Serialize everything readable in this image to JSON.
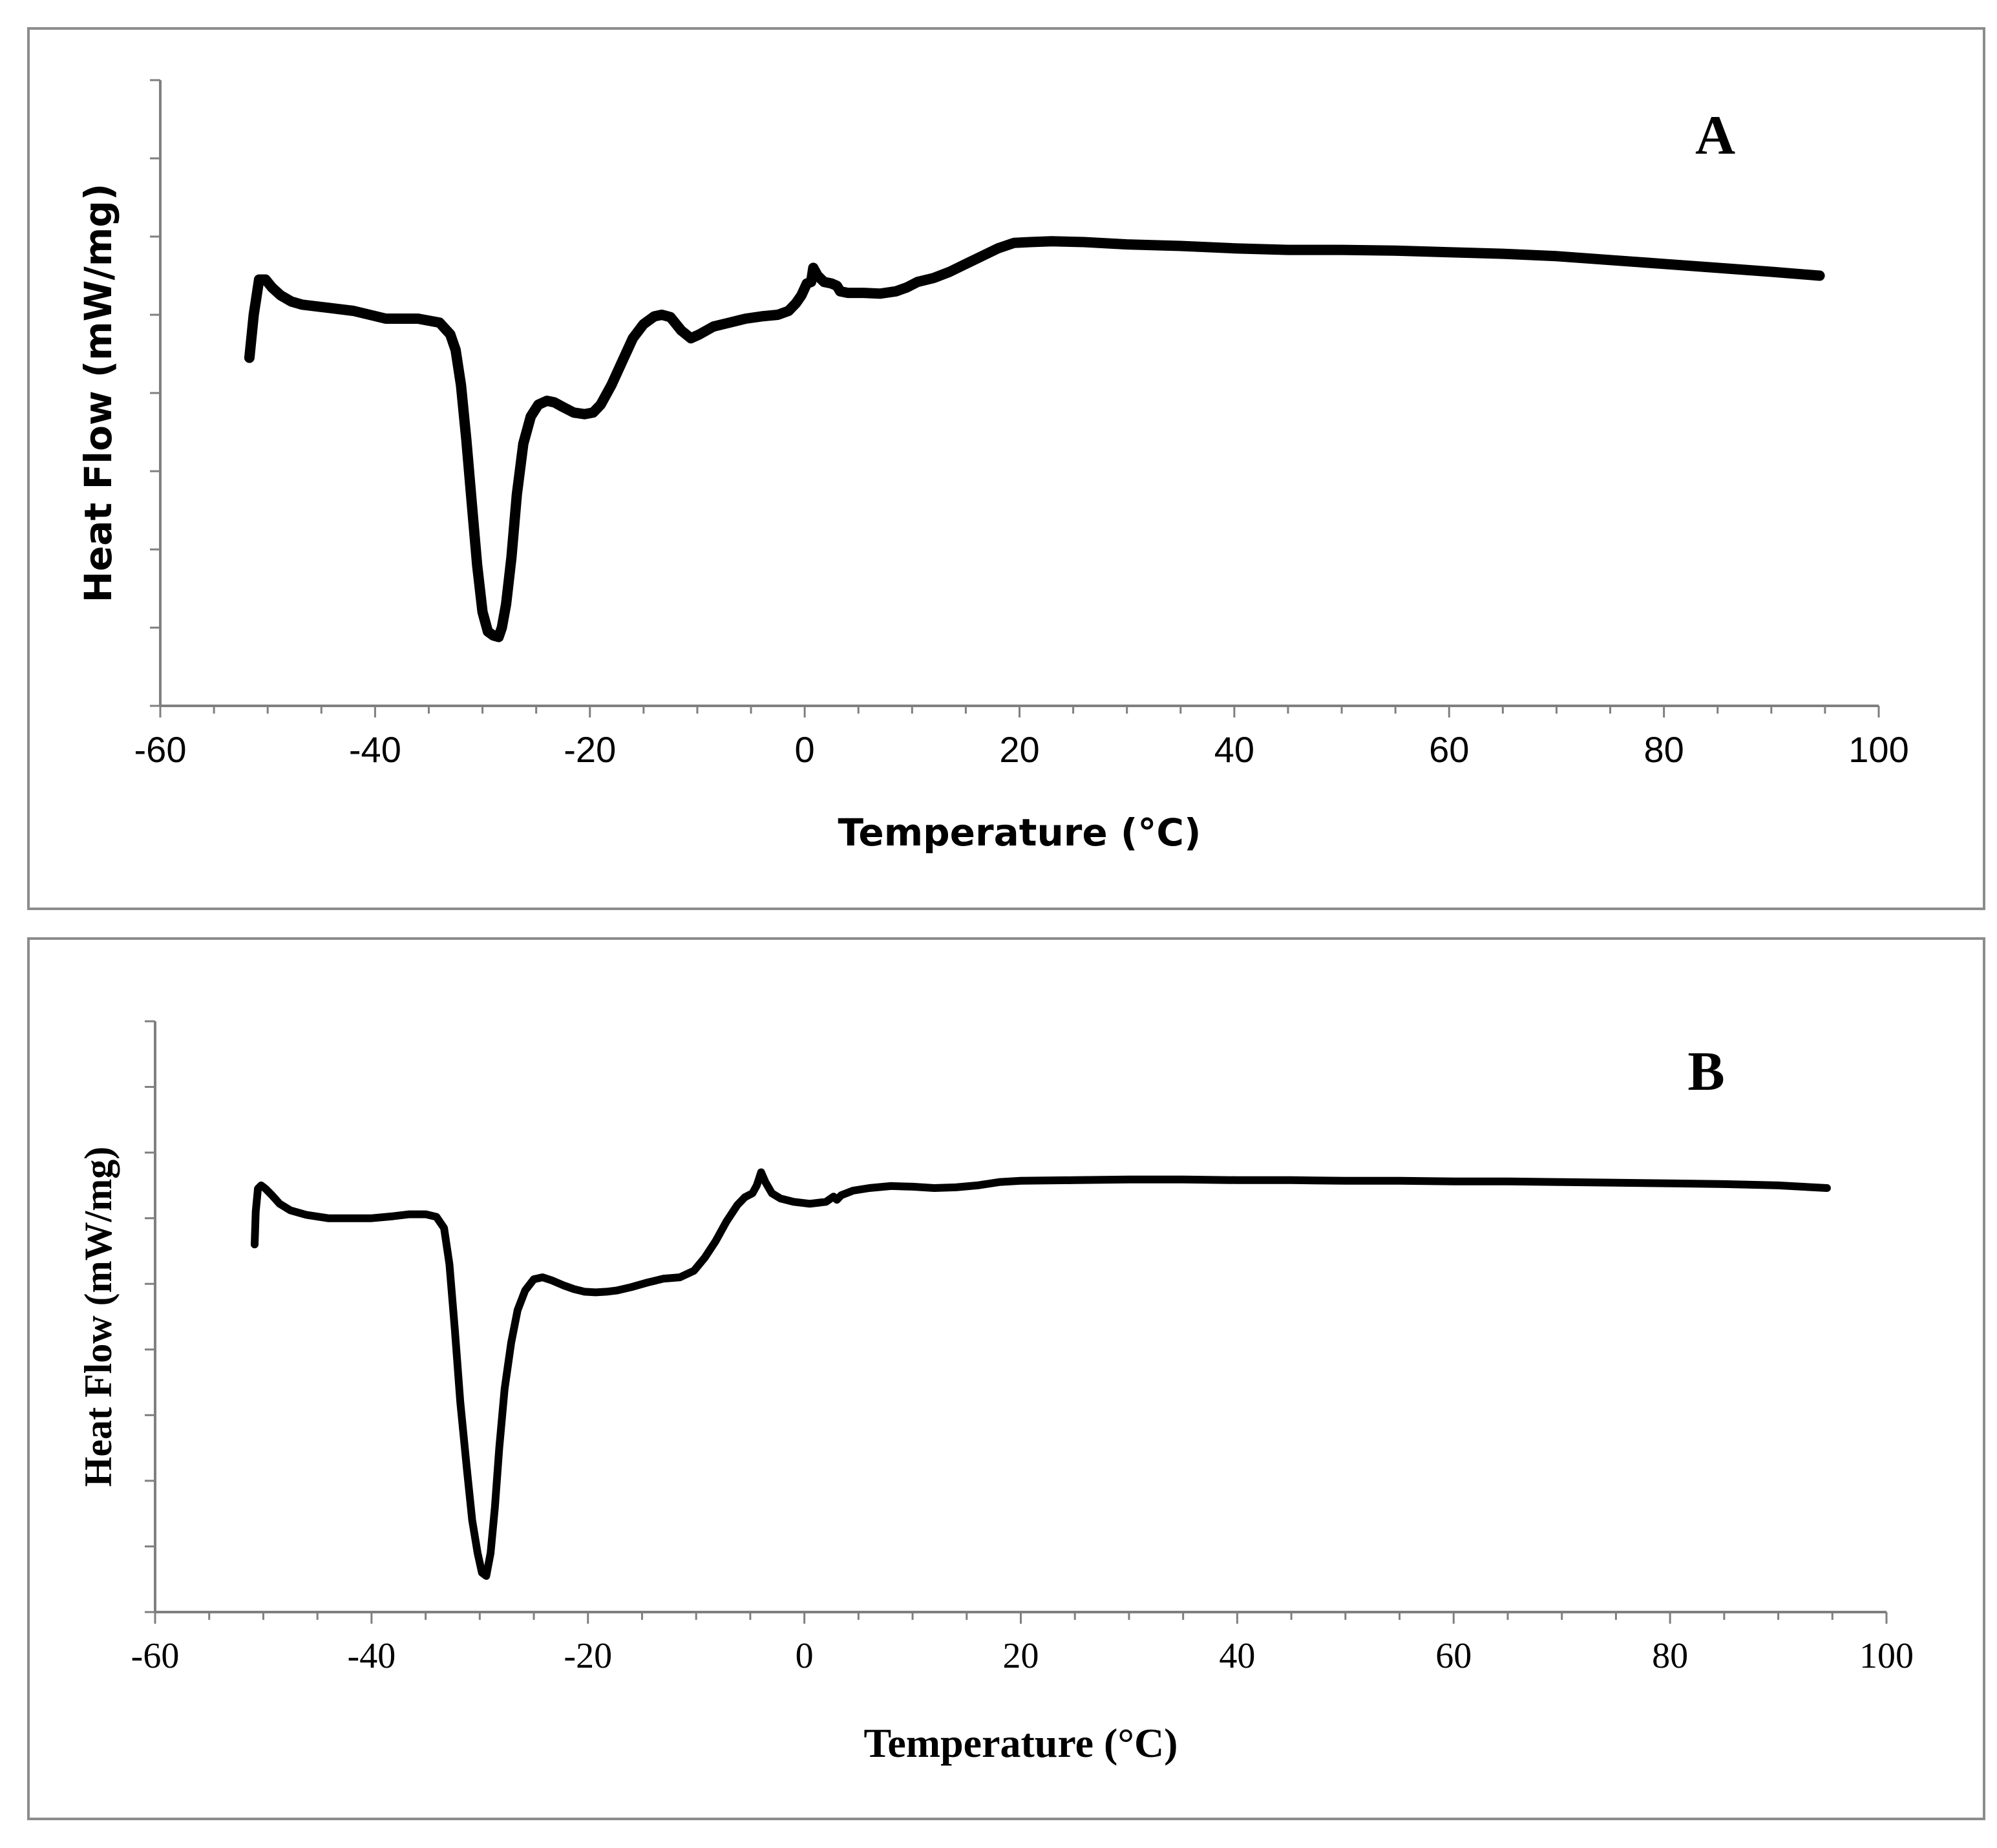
{
  "chart_data": [
    {
      "type": "line",
      "panel_label": "A",
      "title": "",
      "xlabel": "Temperature (°C)",
      "ylabel": "Heat Flow (mW/mg)",
      "xlim": [
        -60,
        100
      ],
      "x_ticks": [
        -60,
        -40,
        -20,
        0,
        20,
        40,
        60,
        80,
        100
      ],
      "x_tick_labels": [
        "-60",
        "-40",
        "-20",
        "0",
        "20",
        "40",
        "60",
        "80",
        "100"
      ],
      "ylim": [
        0,
        8
      ],
      "y_ticks_unlabeled": [
        0,
        1,
        2,
        3,
        4,
        5,
        6,
        7,
        8
      ],
      "grid": false,
      "series": [
        {
          "name": "A",
          "x": [
            -51.7,
            -51.3,
            -50.8,
            -50.2,
            -49.6,
            -48.8,
            -47.8,
            -46.8,
            -45,
            -42,
            -39,
            -36,
            -34,
            -33,
            -32.5,
            -32,
            -31.5,
            -31,
            -30.5,
            -30,
            -29.5,
            -29,
            -28.5,
            -28.2,
            -27.8,
            -27.3,
            -26.8,
            -26.2,
            -25.5,
            -24.8,
            -24,
            -23.3,
            -22.5,
            -21.5,
            -20.5,
            -19.7,
            -19,
            -18,
            -17,
            -16,
            -15,
            -14,
            -13.3,
            -12.5,
            -11.5,
            -10.6,
            -9.8,
            -8.5,
            -7,
            -5.5,
            -4,
            -2.5,
            -1.5,
            -0.8,
            -0.3,
            0.2,
            0.6,
            0.8,
            1.2,
            1.8,
            2.5,
            3,
            3.3,
            4,
            5.5,
            7,
            8.5,
            9.5,
            10.5,
            12,
            13.5,
            15,
            16.5,
            18,
            19.5,
            21,
            23,
            26,
            30,
            35,
            40,
            45,
            50,
            55,
            60,
            65,
            70,
            75,
            80,
            85,
            90,
            94.5
          ],
          "y": [
            4.45,
            5.0,
            5.45,
            5.45,
            5.35,
            5.25,
            5.17,
            5.13,
            5.1,
            5.05,
            4.95,
            4.95,
            4.9,
            4.75,
            4.55,
            4.1,
            3.4,
            2.6,
            1.8,
            1.2,
            0.95,
            0.9,
            0.88,
            1.0,
            1.3,
            1.9,
            2.7,
            3.35,
            3.7,
            3.85,
            3.9,
            3.88,
            3.82,
            3.75,
            3.73,
            3.75,
            3.85,
            4.1,
            4.4,
            4.7,
            4.88,
            4.98,
            5.0,
            4.97,
            4.8,
            4.7,
            4.75,
            4.85,
            4.9,
            4.95,
            4.98,
            5.0,
            5.05,
            5.15,
            5.25,
            5.4,
            5.42,
            5.6,
            5.5,
            5.42,
            5.4,
            5.37,
            5.3,
            5.28,
            5.28,
            5.27,
            5.3,
            5.35,
            5.42,
            5.47,
            5.55,
            5.65,
            5.75,
            5.85,
            5.92,
            5.93,
            5.94,
            5.93,
            5.9,
            5.88,
            5.85,
            5.83,
            5.83,
            5.82,
            5.8,
            5.78,
            5.75,
            5.7,
            5.65,
            5.6,
            5.55,
            5.5
          ]
        }
      ]
    },
    {
      "type": "line",
      "panel_label": "B",
      "title": "",
      "xlabel": "Temperature (°C)",
      "ylabel": "Heat Flow (mW/mg)",
      "xlim": [
        -60,
        100
      ],
      "x_ticks": [
        -60,
        -40,
        -20,
        0,
        20,
        40,
        60,
        80,
        100
      ],
      "x_tick_labels": [
        "-60",
        "-40",
        "-20",
        "0",
        "20",
        "40",
        "60",
        "80",
        "100"
      ],
      "ylim": [
        0,
        9
      ],
      "y_ticks_unlabeled": [
        0,
        1,
        2,
        3,
        4,
        5,
        6,
        7,
        8,
        9
      ],
      "grid": false,
      "series": [
        {
          "name": "B",
          "x": [
            -50.8,
            -50.7,
            -50.5,
            -50.2,
            -49.8,
            -49.2,
            -48.5,
            -47.5,
            -46,
            -44,
            -42,
            -40,
            -38,
            -36.5,
            -35,
            -34,
            -33.3,
            -32.8,
            -32.3,
            -31.8,
            -31.2,
            -30.7,
            -30.2,
            -29.8,
            -29.4,
            -29,
            -28.6,
            -28.2,
            -27.7,
            -27.1,
            -26.5,
            -25.8,
            -25,
            -24.2,
            -23.3,
            -22.3,
            -21.3,
            -20.3,
            -19.3,
            -18.3,
            -17.3,
            -16,
            -14.5,
            -13,
            -11.5,
            -10.2,
            -9.2,
            -8.2,
            -7.2,
            -6.2,
            -5.5,
            -4.8,
            -4.4,
            -4.0,
            -3.6,
            -3.0,
            -2.2,
            -1,
            0.5,
            2,
            2.7,
            3.0,
            3.4,
            4.5,
            6,
            8,
            10,
            12,
            14,
            16,
            18,
            20,
            25,
            30,
            35,
            40,
            45,
            50,
            55,
            60,
            65,
            70,
            75,
            80,
            85,
            90,
            94.5
          ],
          "y": [
            5.6,
            6.1,
            6.45,
            6.5,
            6.45,
            6.35,
            6.22,
            6.12,
            6.05,
            6.0,
            6.0,
            6.0,
            6.03,
            6.06,
            6.06,
            6.02,
            5.85,
            5.3,
            4.3,
            3.2,
            2.2,
            1.4,
            0.9,
            0.6,
            0.55,
            0.9,
            1.6,
            2.5,
            3.4,
            4.1,
            4.6,
            4.9,
            5.07,
            5.1,
            5.05,
            4.98,
            4.92,
            4.88,
            4.87,
            4.88,
            4.9,
            4.95,
            5.02,
            5.08,
            5.1,
            5.2,
            5.4,
            5.65,
            5.95,
            6.2,
            6.32,
            6.38,
            6.5,
            6.7,
            6.55,
            6.38,
            6.3,
            6.25,
            6.22,
            6.25,
            6.33,
            6.28,
            6.35,
            6.42,
            6.46,
            6.49,
            6.48,
            6.46,
            6.47,
            6.5,
            6.55,
            6.57,
            6.58,
            6.59,
            6.59,
            6.58,
            6.58,
            6.57,
            6.57,
            6.56,
            6.56,
            6.55,
            6.54,
            6.53,
            6.52,
            6.5,
            6.46
          ]
        }
      ]
    }
  ]
}
